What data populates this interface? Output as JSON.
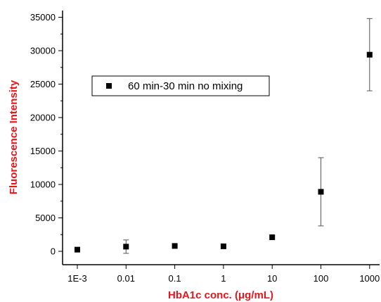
{
  "chart_data": {
    "type": "scatter",
    "x_scale": "log",
    "x_ticks": [
      "1E-3",
      "0.01",
      "0.1",
      "1",
      "10",
      "100",
      "1000"
    ],
    "y_ticks": [
      "0",
      "5000",
      "10000",
      "15000",
      "20000",
      "25000",
      "30000",
      "35000"
    ],
    "xlabel": "HbA1c conc. (μg/mL)",
    "ylabel": "Fluorescence Intensity",
    "ylim": [
      -2000,
      36000
    ],
    "grid": false,
    "legend_position": "upper-left",
    "colors": {
      "axis_title": "#e8151b",
      "marker": "#000000"
    },
    "series": [
      {
        "name": "60 min-30 min no mixing",
        "marker": "square",
        "x": [
          0.001,
          0.01,
          0.1,
          1,
          10,
          100,
          1000
        ],
        "y": [
          250,
          700,
          800,
          750,
          2100,
          8900,
          29400
        ],
        "error": [
          0,
          1000,
          0,
          0,
          0,
          5100,
          5400
        ]
      }
    ]
  }
}
